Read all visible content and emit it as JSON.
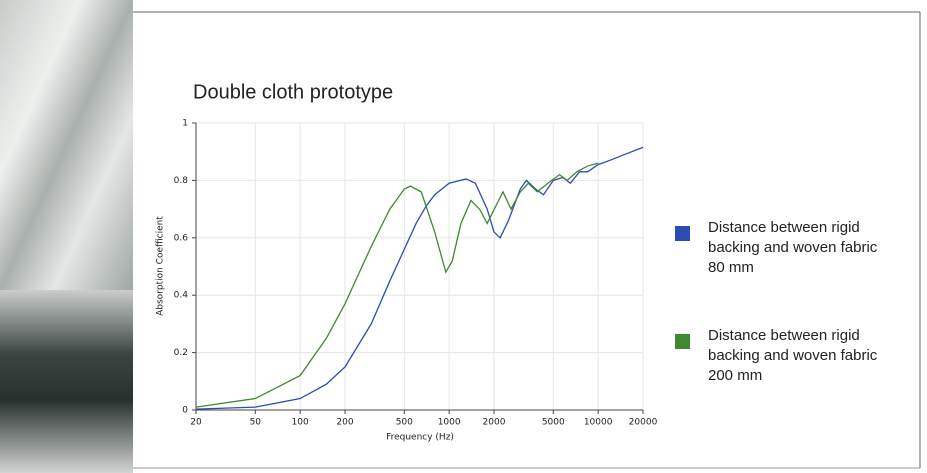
{
  "chart_data": {
    "type": "line",
    "title": "Double cloth prototype",
    "x_label": "Frequency (Hz)",
    "y_label": "Absorption Coefficient",
    "log_x": true,
    "grid": true,
    "xlim": [
      20,
      20000
    ],
    "ylim": [
      0,
      1
    ],
    "xticks": [
      20,
      50,
      100,
      200,
      500,
      1000,
      2000,
      5000,
      10000,
      20000
    ],
    "yticks": [
      0,
      0.2,
      0.4,
      0.6,
      0.8,
      1
    ],
    "series": [
      {
        "name": "Distance between rigid backing and woven fabric 80 mm",
        "color": "#2a4db3",
        "x": [
          20,
          50,
          100,
          150,
          200,
          300,
          400,
          500,
          600,
          700,
          800,
          1000,
          1300,
          1500,
          1800,
          2000,
          2200,
          2500,
          3000,
          3300,
          3800,
          4300,
          5000,
          5800,
          6500,
          7500,
          8500,
          10000,
          12000,
          15000,
          20000
        ],
        "values": [
          0.003,
          0.01,
          0.04,
          0.09,
          0.15,
          0.3,
          0.45,
          0.56,
          0.65,
          0.71,
          0.75,
          0.79,
          0.805,
          0.79,
          0.7,
          0.62,
          0.6,
          0.66,
          0.77,
          0.8,
          0.77,
          0.75,
          0.8,
          0.81,
          0.79,
          0.83,
          0.83,
          0.855,
          0.87,
          0.89,
          0.915
        ]
      },
      {
        "name": "Distance between rigid backing and woven fabric 200 mm",
        "color": "#3f8a2f",
        "x": [
          20,
          50,
          100,
          150,
          200,
          300,
          400,
          500,
          550,
          650,
          800,
          950,
          1050,
          1200,
          1400,
          1600,
          1800,
          2100,
          2300,
          2600,
          3000,
          3400,
          3900,
          4600,
          5500,
          6200,
          7200,
          8500,
          10000
        ],
        "values": [
          0.01,
          0.04,
          0.12,
          0.25,
          0.37,
          0.57,
          0.7,
          0.77,
          0.78,
          0.76,
          0.62,
          0.48,
          0.52,
          0.65,
          0.73,
          0.7,
          0.65,
          0.72,
          0.76,
          0.7,
          0.76,
          0.79,
          0.76,
          0.79,
          0.82,
          0.8,
          0.83,
          0.85,
          0.86
        ]
      }
    ]
  }
}
